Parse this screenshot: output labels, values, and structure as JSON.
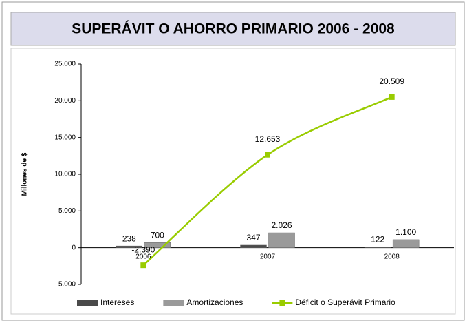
{
  "chart_data": {
    "type": "bar",
    "title": "SUPERÁVIT O AHORRO PRIMARIO 2006 - 2008",
    "y_label": "Millones de $",
    "categories": [
      "2006",
      "2007",
      "2008"
    ],
    "series": [
      {
        "name": "Intereses",
        "type": "bar",
        "color": "#4a4a4a",
        "values": [
          238,
          347,
          122
        ],
        "value_labels": [
          "238",
          "347",
          "122"
        ]
      },
      {
        "name": "Amortizaciones",
        "type": "bar",
        "color": "#9a9a9a",
        "values": [
          700,
          2026,
          1100
        ],
        "value_labels": [
          "700",
          "2.026",
          "1.100"
        ]
      },
      {
        "name": "Déficit o Superávit Primario",
        "type": "line",
        "color": "#99cc00",
        "values": [
          -2390,
          12653,
          20509
        ],
        "value_labels": [
          "-2.390",
          "12.653",
          "20.509"
        ]
      }
    ],
    "ylim": [
      -5000,
      25000
    ],
    "yticks": [
      {
        "value": -5000,
        "label": "-5.000"
      },
      0,
      {
        "value": 5000,
        "label": "5.000"
      },
      {
        "value": 10000,
        "label": "10.000"
      },
      {
        "value": 15000,
        "label": "15.000"
      },
      {
        "value": 20000,
        "label": "20.000"
      },
      {
        "value": 25000,
        "label": "25.000"
      }
    ],
    "legend": "bottom"
  }
}
